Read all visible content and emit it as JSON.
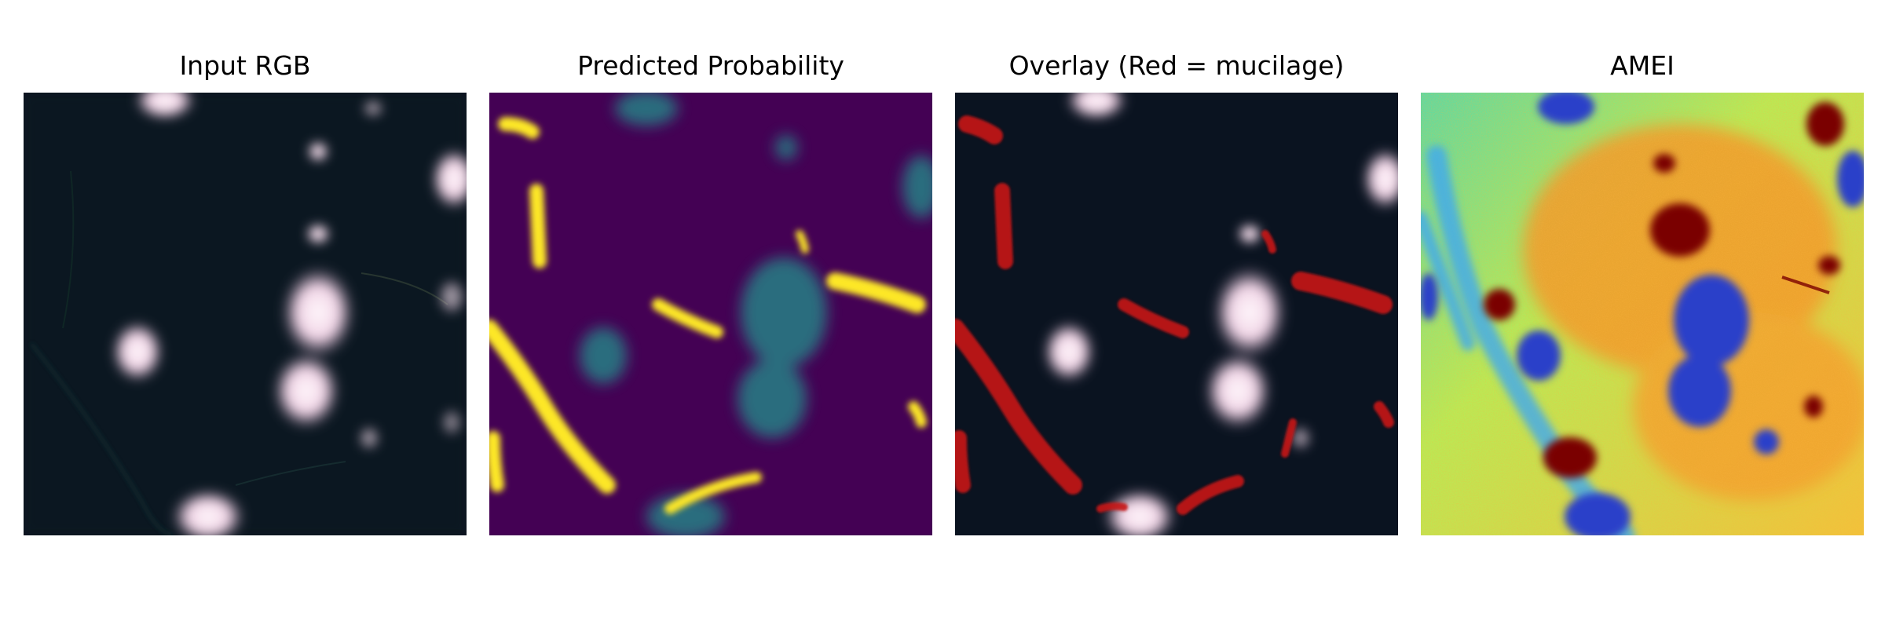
{
  "panels": [
    {
      "title": "Input RGB"
    },
    {
      "title": "Predicted Probability"
    },
    {
      "title": "Overlay (Red = mucilage)"
    },
    {
      "title": "AMEI"
    }
  ],
  "colors": {
    "background": "#ffffff",
    "rgb_sea": "#0a1320",
    "cloud": "#f6e6f0",
    "probability_low": "#440154",
    "probability_mid": "#21918c",
    "probability_high": "#fde725",
    "overlay_mucilage": "#c81414",
    "amei_low": "#2b3fc9",
    "amei_mid": "#8fe86a",
    "amei_high": "#7a0000"
  }
}
